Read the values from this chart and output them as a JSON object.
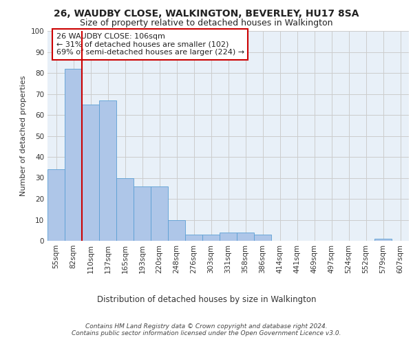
{
  "title1": "26, WAUDBY CLOSE, WALKINGTON, BEVERLEY, HU17 8SA",
  "title2": "Size of property relative to detached houses in Walkington",
  "xlabel": "Distribution of detached houses by size in Walkington",
  "ylabel": "Number of detached properties",
  "bar_labels": [
    "55sqm",
    "82sqm",
    "110sqm",
    "137sqm",
    "165sqm",
    "193sqm",
    "220sqm",
    "248sqm",
    "276sqm",
    "303sqm",
    "331sqm",
    "358sqm",
    "386sqm",
    "414sqm",
    "441sqm",
    "469sqm",
    "497sqm",
    "524sqm",
    "552sqm",
    "579sqm",
    "607sqm"
  ],
  "bar_values": [
    34,
    82,
    65,
    67,
    30,
    26,
    26,
    10,
    3,
    3,
    4,
    4,
    3,
    0,
    0,
    0,
    0,
    0,
    0,
    1,
    0
  ],
  "bar_color": "#aec6e8",
  "bar_edge_color": "#5a9fd4",
  "vline_color": "#cc0000",
  "annotation_text": "26 WAUDBY CLOSE: 106sqm\n← 31% of detached houses are smaller (102)\n69% of semi-detached houses are larger (224) →",
  "annotation_box_color": "#ffffff",
  "annotation_box_edge": "#cc0000",
  "ylim": [
    0,
    100
  ],
  "yticks": [
    0,
    10,
    20,
    30,
    40,
    50,
    60,
    70,
    80,
    90,
    100
  ],
  "grid_color": "#cccccc",
  "bg_color": "#e8f0f8",
  "footer_line1": "Contains HM Land Registry data © Crown copyright and database right 2024.",
  "footer_line2": "Contains public sector information licensed under the Open Government Licence v3.0.",
  "title1_fontsize": 10,
  "title2_fontsize": 9,
  "xlabel_fontsize": 8.5,
  "ylabel_fontsize": 8,
  "tick_fontsize": 7.5,
  "annotation_fontsize": 8,
  "footer_fontsize": 6.5
}
